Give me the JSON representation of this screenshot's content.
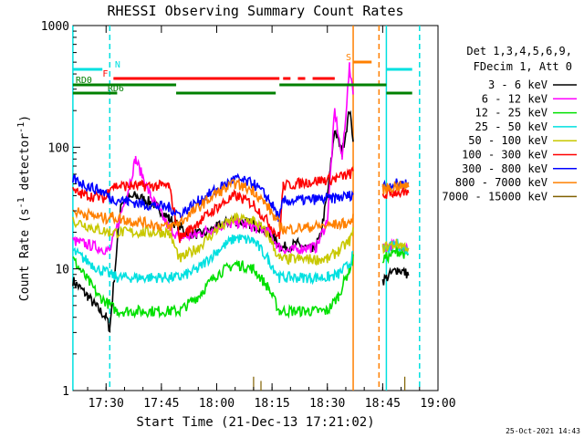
{
  "chart_data": {
    "type": "line",
    "title": "RHESSI Observing Summary Count Rates",
    "xlabel": "Start Time (21-Dec-13 17:21:02)",
    "ylabel": "Count Rate (s⁻¹ detector⁻¹)",
    "ylabel_parts": {
      "main": "Count Rate (s",
      "exp1": "-1",
      "mid": " detector",
      "exp2": "-1",
      "end": ")"
    },
    "y_scale": "log",
    "ylim": [
      1,
      1000
    ],
    "xlim_minutes": [
      1041.03,
      1140
    ],
    "x_tick_labels": [
      "17:30",
      "17:45",
      "18:00",
      "18:15",
      "18:30",
      "18:45",
      "19:00"
    ],
    "y_tick_labels": [
      "1",
      "10",
      "100",
      "1000"
    ],
    "timestamp": "25-Oct-2021 14:43",
    "legend_header": [
      "Det 1,3,4,5,6,9,",
      "FDecim 1, Att 0"
    ],
    "legend_placement": "right",
    "grid": false,
    "series": [
      {
        "name": "3 - 6 keV",
        "color": "#000000",
        "x": [
          "17:21",
          "17:25",
          "17:27",
          "17:30",
          "17:31",
          "17:34",
          "17:38",
          "17:43",
          "17:47",
          "17:52",
          "17:56",
          "18:00",
          "18:04",
          "18:08",
          "18:12",
          "18:15",
          "18:18",
          "18:22",
          "18:26",
          "18:28",
          "18:30",
          "18:32",
          "18:34",
          "18:36",
          "18:37",
          "18:45",
          "18:49",
          "18:52"
        ],
        "y": [
          8,
          6,
          5,
          4,
          3.2,
          35,
          40,
          34,
          26,
          20,
          19,
          22,
          25,
          24,
          22,
          18,
          15,
          16,
          14,
          18,
          40,
          140,
          90,
          200,
          120,
          8,
          10,
          9
        ]
      },
      {
        "name": "6 - 12 keV",
        "color": "#ff00ff",
        "x": [
          "17:21",
          "17:28",
          "17:31",
          "17:36",
          "17:38",
          "17:42",
          "17:47",
          "17:50",
          "17:54",
          "17:58",
          "18:02",
          "18:06",
          "18:10",
          "18:14",
          "18:17",
          "18:20",
          "18:24",
          "18:27",
          "18:30",
          "18:32",
          "18:34",
          "18:36",
          "18:37",
          "18:45",
          "18:49",
          "18:52"
        ],
        "y": [
          17,
          15,
          14,
          45,
          80,
          40,
          22,
          18,
          19,
          21,
          23,
          24,
          22,
          20,
          15,
          14,
          15,
          15,
          25,
          200,
          80,
          450,
          300,
          15,
          16,
          15
        ]
      },
      {
        "name": "12 - 25 keV",
        "color": "#00e000",
        "x": [
          "17:21",
          "17:28",
          "17:33",
          "17:40",
          "17:47",
          "17:50",
          "17:55",
          "18:00",
          "18:05",
          "18:10",
          "18:14",
          "18:17",
          "18:20",
          "18:25",
          "18:30",
          "18:33",
          "18:36",
          "18:37",
          "18:45",
          "18:49",
          "18:52"
        ],
        "y": [
          12,
          6,
          4.5,
          4.5,
          4.5,
          4.5,
          6,
          9,
          11,
          10,
          7,
          4.5,
          4.5,
          4.5,
          4.5,
          6,
          10,
          12,
          12,
          14,
          13
        ]
      },
      {
        "name": "25 - 50 keV",
        "color": "#00e0e0",
        "x": [
          "17:21",
          "17:28",
          "17:33",
          "17:40",
          "17:47",
          "17:50",
          "17:55",
          "18:00",
          "18:05",
          "18:10",
          "18:14",
          "18:17",
          "18:20",
          "18:25",
          "18:30",
          "18:33",
          "18:36",
          "18:37",
          "18:45",
          "18:49",
          "18:52"
        ],
        "y": [
          14,
          10,
          8.5,
          8.5,
          8.5,
          8.5,
          10,
          14,
          18,
          17,
          12,
          8.5,
          8.5,
          8.5,
          8.5,
          9,
          11,
          13,
          14,
          16,
          14
        ]
      },
      {
        "name": "50 - 100 keV",
        "color": "#c8c800",
        "x": [
          "17:21",
          "17:28",
          "17:31",
          "17:40",
          "17:47",
          "17:50",
          "17:55",
          "18:00",
          "18:05",
          "18:10",
          "18:14",
          "18:17",
          "18:20",
          "18:25",
          "18:30",
          "18:33",
          "18:36",
          "18:37",
          "18:45",
          "18:49",
          "18:52"
        ],
        "y": [
          25,
          21,
          20,
          20,
          20,
          12,
          15,
          21,
          26,
          25,
          19,
          12,
          12,
          12,
          12,
          14,
          17,
          20,
          15,
          16,
          15
        ]
      },
      {
        "name": "100 - 300 keV",
        "color": "#ff0000",
        "x": [
          "17:21",
          "17:25",
          "17:30",
          "17:31",
          "17:36",
          "17:40",
          "17:47",
          "17:50",
          "17:55",
          "18:00",
          "18:05",
          "18:10",
          "18:14",
          "18:17",
          "18:18",
          "18:25",
          "18:32",
          "18:36",
          "18:37",
          "18:45",
          "18:49",
          "18:52"
        ],
        "y": [
          43,
          40,
          38,
          48,
          48,
          48,
          48,
          18,
          24,
          32,
          40,
          34,
          24,
          18,
          48,
          52,
          55,
          60,
          62,
          40,
          43,
          40
        ]
      },
      {
        "name": "300 - 800 keV",
        "color": "#0000ff",
        "x": [
          "17:21",
          "17:25",
          "17:30",
          "17:31",
          "17:36",
          "17:40",
          "17:47",
          "17:50",
          "17:55",
          "18:00",
          "18:05",
          "18:10",
          "18:14",
          "18:17",
          "18:18",
          "18:25",
          "18:32",
          "18:36",
          "18:37",
          "18:45",
          "18:49",
          "18:52"
        ],
        "y": [
          55,
          48,
          42,
          38,
          36,
          34,
          32,
          28,
          36,
          45,
          55,
          50,
          38,
          26,
          36,
          37,
          38,
          40,
          42,
          48,
          50,
          50
        ]
      },
      {
        "name": "800 - 7000 keV",
        "color": "#ff8000",
        "x": [
          "17:21",
          "17:25",
          "17:30",
          "17:31",
          "17:36",
          "17:40",
          "17:47",
          "17:50",
          "17:55",
          "18:00",
          "18:05",
          "18:10",
          "18:14",
          "18:17",
          "18:18",
          "18:25",
          "18:32",
          "18:36",
          "18:37",
          "18:45",
          "18:49",
          "18:52"
        ],
        "y": [
          30,
          28,
          26,
          27,
          25,
          24,
          22,
          24,
          32,
          42,
          50,
          44,
          32,
          23,
          21,
          22,
          23,
          24,
          26,
          45,
          48,
          47
        ]
      },
      {
        "name": "7000 - 15000 keV",
        "color": "#806000",
        "x": [
          "18:00",
          "18:09",
          "18:10",
          "18:11",
          "18:12",
          "18:51"
        ],
        "y": [
          1,
          1,
          1.3,
          1,
          1.2,
          1.3
        ]
      }
    ],
    "flag_bars": [
      {
        "label": "N",
        "color": "#00e0e0",
        "segments": [
          [
            "17:21",
            "17:29"
          ],
          [
            "18:46",
            "18:53"
          ]
        ]
      },
      {
        "label": "F",
        "color": "#ff0000",
        "segments": [
          [
            "17:32",
            "18:17"
          ],
          [
            "18:18",
            "18:20"
          ],
          [
            "18:22",
            "18:24"
          ],
          [
            "18:26",
            "18:32"
          ]
        ]
      },
      {
        "label": "S",
        "color": "#ff8000",
        "segments": [
          [
            "18:37",
            "18:42"
          ]
        ]
      },
      {
        "label": "RD0",
        "color": "#008000",
        "segments": [
          [
            "17:21",
            "17:49"
          ],
          [
            "18:17",
            "18:46"
          ]
        ]
      },
      {
        "label": "RD6",
        "color": "#008000",
        "segments": [
          [
            "17:21",
            "17:33"
          ],
          [
            "17:49",
            "18:16"
          ],
          [
            "18:46",
            "18:53"
          ]
        ]
      }
    ],
    "vertical_lines": [
      {
        "time": "17:21",
        "color": "#00e0e0",
        "style": "solid"
      },
      {
        "time": "17:31",
        "color": "#00e0e0",
        "style": "dashed"
      },
      {
        "time": "18:37",
        "color": "#ff8000",
        "style": "solid"
      },
      {
        "time": "18:44",
        "color": "#ff8000",
        "style": "dashed"
      },
      {
        "time": "18:46",
        "color": "#00e0e0",
        "style": "solid"
      },
      {
        "time": "18:55",
        "color": "#00e0e0",
        "style": "dashed"
      }
    ]
  }
}
